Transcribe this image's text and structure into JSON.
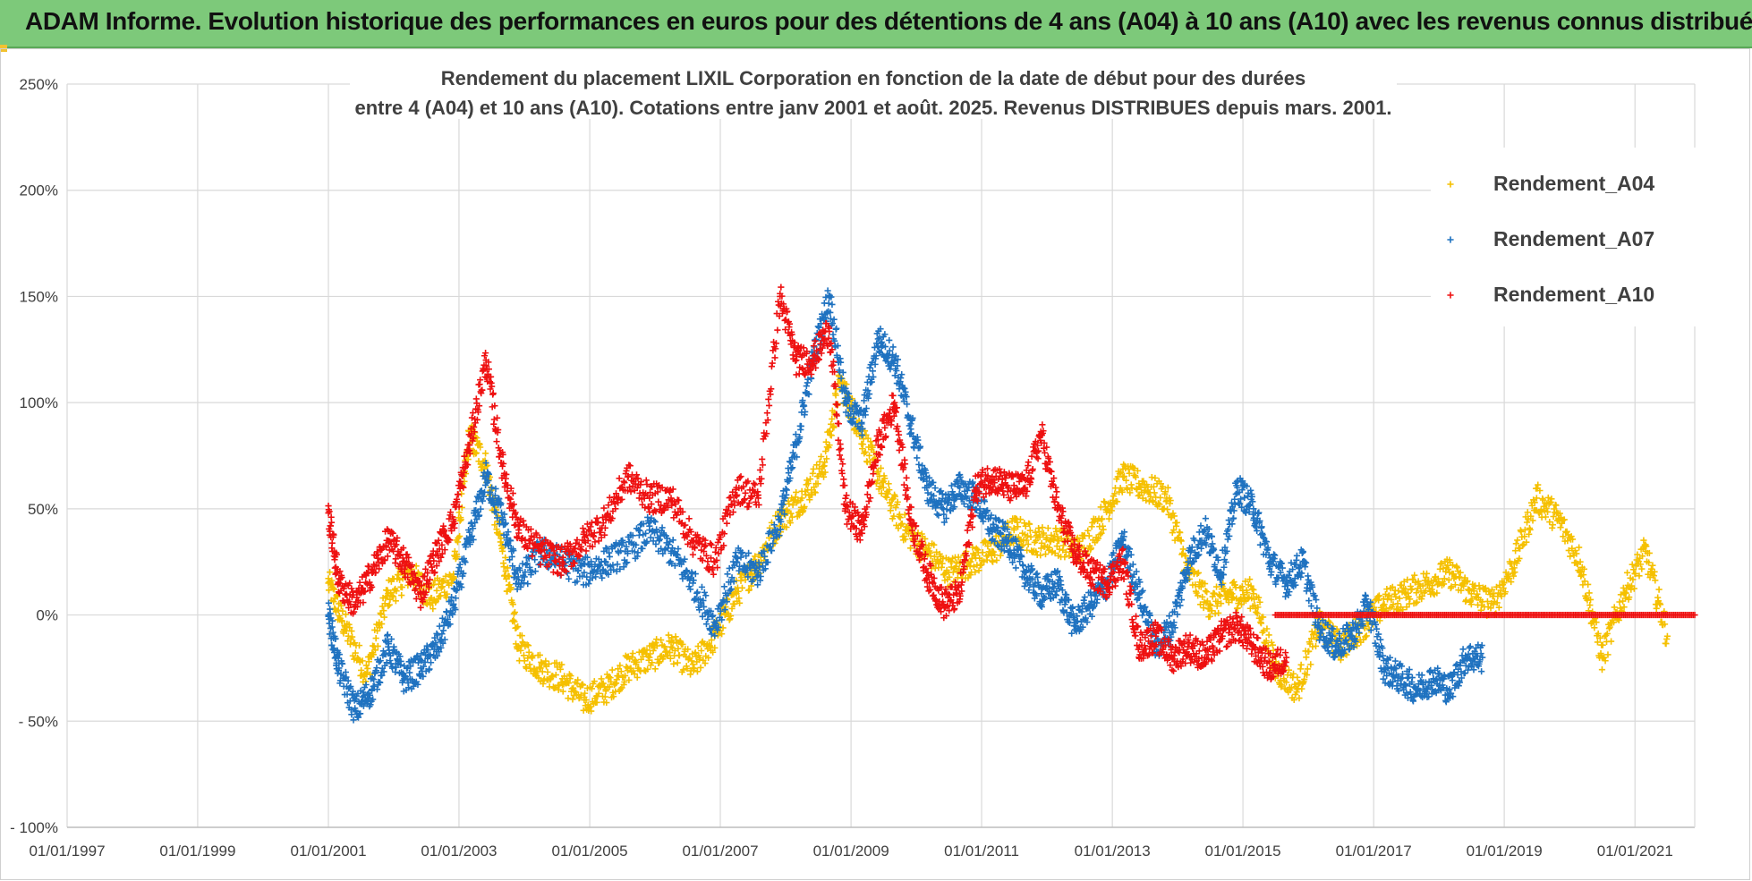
{
  "header": {
    "title": "ADAM Informe. Evolution historique des performances en euros pour des détentions de 4 ans (A04) à 10 ans (A10) avec les revenus connus distribués"
  },
  "colors": {
    "banner": "#7dc97a",
    "A04": "#f5c000",
    "A07": "#1f72c0",
    "A10": "#ee1111",
    "grid": "#d9d9d9"
  },
  "chart_data": {
    "type": "scatter",
    "title_lines": [
      "Rendement du placement LIXIL Corporation en fonction de la date de début pour des durées",
      "entre 4 (A04) et 10 ans (A10). Cotations entre janv 2001 et août. 2025. Revenus DISTRIBUES depuis mars. 2001."
    ],
    "marker": "+",
    "x_axis": {
      "type": "date",
      "range": [
        "1997-01-01",
        "2021-12-01"
      ],
      "ticks": [
        "1997-01-01",
        "1999-01-01",
        "2001-01-01",
        "2003-01-01",
        "2005-01-01",
        "2007-01-01",
        "2009-01-01",
        "2011-01-01",
        "2013-01-01",
        "2015-01-01",
        "2017-01-01",
        "2019-01-01",
        "2021-01-01"
      ],
      "tick_labels": [
        "01/01/1997",
        "01/01/1999",
        "01/01/2001",
        "01/01/2003",
        "01/01/2005",
        "01/01/2007",
        "01/01/2009",
        "01/01/2011",
        "01/01/2013",
        "01/01/2015",
        "01/01/2017",
        "01/01/2019",
        "01/01/2021"
      ]
    },
    "y_axis": {
      "unit": "%",
      "range": [
        -100,
        250
      ],
      "ticks": [
        -100,
        -50,
        0,
        50,
        100,
        150,
        200,
        250
      ],
      "tick_labels": [
        "- 100%",
        "- 50%",
        "0%",
        "50%",
        "100%",
        "150%",
        "200%",
        "250%"
      ]
    },
    "grid": true,
    "legend": {
      "position": "right",
      "items": [
        "Rendement_A04",
        "Rendement_A07",
        "Rendement_A10"
      ]
    },
    "series": [
      {
        "name": "Rendement_A04",
        "key": "A04",
        "x": [
          "2001-01-01",
          "2001-04-01",
          "2001-08-01",
          "2001-12-01",
          "2002-04-01",
          "2002-08-01",
          "2002-12-01",
          "2003-03-01",
          "2003-06-01",
          "2003-09-01",
          "2003-12-01",
          "2004-04-01",
          "2004-08-01",
          "2004-12-01",
          "2005-04-01",
          "2005-08-01",
          "2005-12-01",
          "2006-04-01",
          "2006-08-01",
          "2006-12-01",
          "2007-04-01",
          "2007-08-01",
          "2007-12-01",
          "2008-04-01",
          "2008-08-01",
          "2008-11-01",
          "2009-03-01",
          "2009-07-01",
          "2009-11-01",
          "2010-03-01",
          "2010-07-01",
          "2010-11-01",
          "2011-03-01",
          "2011-07-01",
          "2011-11-01",
          "2012-03-01",
          "2012-07-01",
          "2012-11-01",
          "2013-03-01",
          "2013-07-01",
          "2013-11-01",
          "2014-03-01",
          "2014-07-01",
          "2014-11-01",
          "2015-03-01",
          "2015-07-01",
          "2015-11-01",
          "2016-03-01",
          "2016-07-01",
          "2016-11-01",
          "2017-03-01",
          "2017-07-01",
          "2017-11-01",
          "2018-03-01",
          "2018-07-01",
          "2018-11-01",
          "2019-03-01",
          "2019-07-01",
          "2019-11-01",
          "2020-03-01",
          "2020-07-01",
          "2020-11-01",
          "2021-03-01",
          "2021-07-01"
        ],
        "y": [
          15,
          -5,
          -28,
          10,
          20,
          8,
          18,
          85,
          70,
          30,
          -15,
          -25,
          -30,
          -40,
          -35,
          -25,
          -20,
          -15,
          -25,
          -10,
          10,
          25,
          45,
          55,
          70,
          110,
          85,
          60,
          40,
          30,
          20,
          25,
          30,
          40,
          35,
          35,
          30,
          45,
          65,
          60,
          55,
          20,
          5,
          10,
          10,
          -25,
          -35,
          -5,
          -15,
          -5,
          5,
          10,
          15,
          20,
          10,
          5,
          25,
          55,
          45,
          25,
          -20,
          10,
          30,
          -10
        ]
      },
      {
        "name": "Rendement_A07",
        "key": "A07",
        "x": [
          "2001-01-01",
          "2001-03-01",
          "2001-06-01",
          "2001-09-01",
          "2001-12-01",
          "2002-03-01",
          "2002-06-01",
          "2002-09-01",
          "2002-12-01",
          "2003-03-01",
          "2003-06-01",
          "2003-09-01",
          "2003-12-01",
          "2004-04-01",
          "2004-08-01",
          "2004-12-01",
          "2005-04-01",
          "2005-08-01",
          "2005-12-01",
          "2006-04-01",
          "2006-08-01",
          "2006-12-01",
          "2007-04-01",
          "2007-08-01",
          "2007-12-01",
          "2008-03-01",
          "2008-06-01",
          "2008-09-01",
          "2008-12-01",
          "2009-03-01",
          "2009-06-01",
          "2009-09-01",
          "2009-12-01",
          "2010-03-01",
          "2010-06-01",
          "2010-09-01",
          "2010-12-01",
          "2011-03-01",
          "2011-06-01",
          "2011-09-01",
          "2011-12-01",
          "2012-03-01",
          "2012-06-01",
          "2012-09-01",
          "2012-12-01",
          "2013-03-01",
          "2013-06-01",
          "2013-09-01",
          "2013-12-01",
          "2014-03-01",
          "2014-06-01",
          "2014-09-01",
          "2014-12-01",
          "2015-03-01",
          "2015-06-01",
          "2015-09-01",
          "2015-12-01",
          "2016-03-01",
          "2016-06-01",
          "2016-09-01",
          "2016-12-01",
          "2017-03-01",
          "2017-06-01",
          "2017-09-01",
          "2017-12-01",
          "2018-03-01",
          "2018-06-01",
          "2018-09-01"
        ],
        "y": [
          0,
          -25,
          -45,
          -35,
          -15,
          -30,
          -25,
          -15,
          5,
          35,
          65,
          45,
          15,
          30,
          25,
          20,
          25,
          30,
          40,
          30,
          15,
          -5,
          25,
          20,
          45,
          80,
          120,
          150,
          100,
          90,
          130,
          120,
          90,
          60,
          50,
          60,
          55,
          40,
          35,
          20,
          10,
          15,
          -5,
          5,
          15,
          35,
          10,
          -15,
          -5,
          25,
          40,
          20,
          60,
          50,
          25,
          15,
          25,
          -5,
          -15,
          -10,
          5,
          -25,
          -30,
          -35,
          -30,
          -35,
          -20,
          -20
        ]
      },
      {
        "name": "Rendement_A10",
        "key": "A10",
        "x": [
          "2001-01-01",
          "2001-03-01",
          "2001-06-01",
          "2001-09-01",
          "2001-12-01",
          "2002-03-01",
          "2002-06-01",
          "2002-09-01",
          "2002-12-01",
          "2003-03-01",
          "2003-06-01",
          "2003-09-01",
          "2003-12-01",
          "2004-04-01",
          "2004-08-01",
          "2004-12-01",
          "2005-04-01",
          "2005-08-01",
          "2005-12-01",
          "2006-04-01",
          "2006-08-01",
          "2006-12-01",
          "2007-04-01",
          "2007-08-01",
          "2007-12-01",
          "2008-03-01",
          "2008-06-01",
          "2008-09-01",
          "2008-12-01",
          "2009-03-01",
          "2009-06-01",
          "2009-09-01",
          "2009-12-01",
          "2010-03-01",
          "2010-06-01",
          "2010-09-01",
          "2010-12-01",
          "2011-03-01",
          "2011-06-01",
          "2011-09-01",
          "2011-12-01",
          "2012-03-01",
          "2012-06-01",
          "2012-09-01",
          "2012-12-01",
          "2013-03-01",
          "2013-06-01",
          "2013-09-01",
          "2013-12-01",
          "2014-03-01",
          "2014-06-01",
          "2014-09-01",
          "2014-12-01",
          "2015-03-01",
          "2015-06-01",
          "2015-09-01"
        ],
        "y": [
          48,
          15,
          5,
          20,
          35,
          25,
          10,
          30,
          45,
          80,
          120,
          70,
          40,
          30,
          25,
          35,
          45,
          65,
          55,
          55,
          35,
          25,
          60,
          55,
          150,
          120,
          120,
          135,
          50,
          40,
          80,
          100,
          45,
          20,
          5,
          10,
          60,
          65,
          60,
          60,
          85,
          50,
          30,
          20,
          15,
          25,
          -15,
          -10,
          -20,
          -15,
          -20,
          -10,
          -5,
          -15,
          -25,
          -20
        ]
      }
    ],
    "series_A10_flat": {
      "x": [
        "2015-07-01",
        "2021-12-01"
      ],
      "y": [
        0,
        0
      ]
    }
  }
}
